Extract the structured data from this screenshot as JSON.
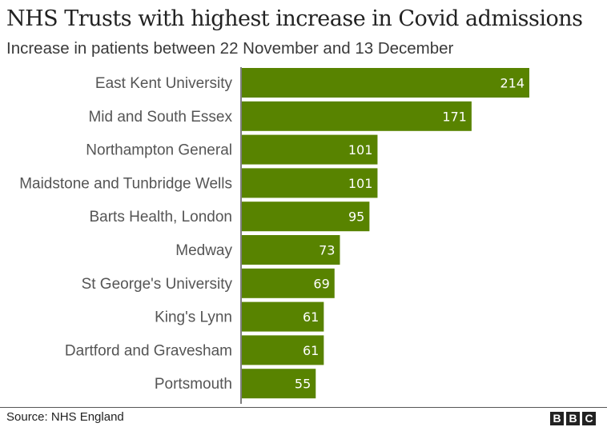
{
  "header": {
    "title": "NHS Trusts with highest increase in Covid admissions",
    "subtitle": "Increase in patients between 22 November and 13 December"
  },
  "footer": {
    "source": "Source: NHS England",
    "logo_letters": [
      "B",
      "B",
      "C"
    ]
  },
  "colors": {
    "bar": "#588300",
    "axis": "#555555"
  },
  "chart_data": {
    "type": "bar",
    "orientation": "horizontal",
    "title": "NHS Trusts with highest increase in Covid admissions",
    "subtitle": "Increase in patients between 22 November and 13 December",
    "xlabel": "",
    "ylabel": "",
    "categories": [
      "East Kent University",
      "Mid and South Essex",
      "Northampton General",
      "Maidstone and Tunbridge Wells",
      "Barts Health, London",
      "Medway",
      "St George's University",
      "King's Lynn",
      "Dartford and Gravesham",
      "Portsmouth"
    ],
    "values": [
      214,
      171,
      101,
      101,
      95,
      73,
      69,
      61,
      61,
      55
    ],
    "xlim": [
      0,
      214
    ],
    "grid": false,
    "legend": "none",
    "data_labels": "inside-end"
  }
}
